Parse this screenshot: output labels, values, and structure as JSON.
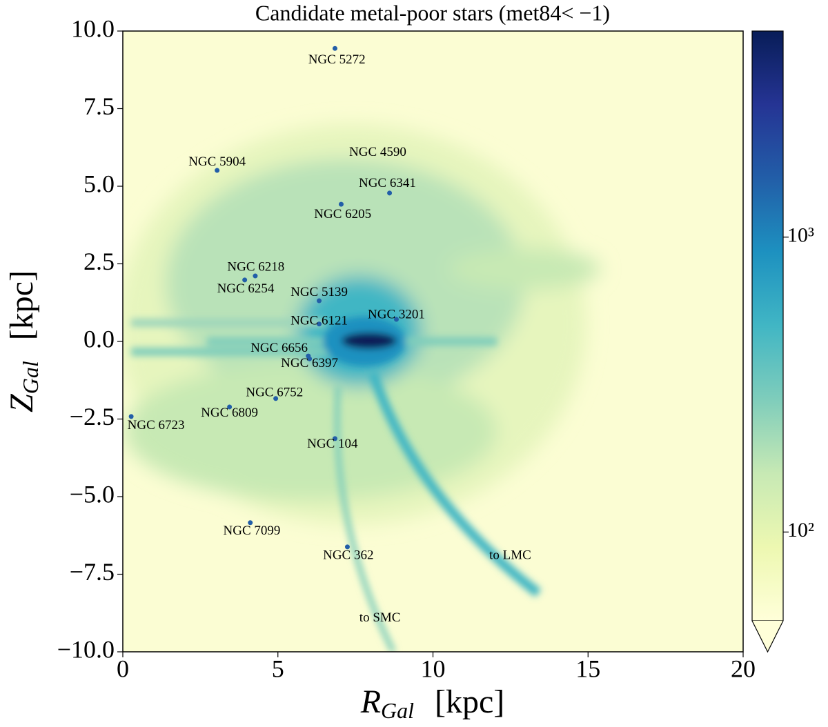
{
  "chart_data": {
    "type": "hexbin",
    "title": "Candidate metal-poor stars (met84< −1)",
    "xlabel": {
      "symbol": "R",
      "sub": "Gal",
      "unit": "[kpc]"
    },
    "ylabel": {
      "symbol": "Z",
      "sub": "Gal",
      "unit": "[kpc]"
    },
    "xlim": [
      0,
      20
    ],
    "ylim": [
      -10,
      10
    ],
    "xticks": [
      0,
      5,
      10,
      15,
      20
    ],
    "yticks": [
      {
        "value": -10,
        "label": "−10.0"
      },
      {
        "value": -7.5,
        "label": "−7.5"
      },
      {
        "value": -5,
        "label": "−5.0"
      },
      {
        "value": -2.5,
        "label": "−2.5"
      },
      {
        "value": 0,
        "label": "0.0"
      },
      {
        "value": 2.5,
        "label": "2.5"
      },
      {
        "value": 5,
        "label": "5.0"
      },
      {
        "value": 7.5,
        "label": "7.5"
      },
      {
        "value": 10,
        "label": "10.0"
      }
    ],
    "colorbar": {
      "scale": "log",
      "lim": [
        50,
        5000
      ],
      "ticks": [
        {
          "value": 100,
          "label": "10²"
        },
        {
          "value": 1000,
          "label": "10³"
        }
      ]
    },
    "annotations": [
      {
        "text": "NGC 5272",
        "x": 6.9,
        "y": 9.05
      },
      {
        "text": "NGC 5904",
        "x": 3.04,
        "y": 5.76
      },
      {
        "text": "NGC 4590",
        "x": 8.22,
        "y": 6.07
      },
      {
        "text": "NGC 6341",
        "x": 8.53,
        "y": 5.07
      },
      {
        "text": "NGC 6205",
        "x": 7.09,
        "y": 4.07
      },
      {
        "text": "NGC 6218",
        "x": 4.29,
        "y": 2.38
      },
      {
        "text": "NGC 6254",
        "x": 3.96,
        "y": 1.67
      },
      {
        "text": "NGC 5139",
        "x": 6.33,
        "y": 1.56
      },
      {
        "text": "NGC 6121",
        "x": 6.33,
        "y": 0.64
      },
      {
        "text": "NGC 3201",
        "x": 8.82,
        "y": 0.84
      },
      {
        "text": "NGC 6656",
        "x": 5.04,
        "y": -0.24
      },
      {
        "text": "NGC 6397",
        "x": 6.02,
        "y": -0.73
      },
      {
        "text": "NGC 6752",
        "x": 4.89,
        "y": -1.67
      },
      {
        "text": "NGC 6809",
        "x": 3.44,
        "y": -2.33
      },
      {
        "text": "NGC 6723",
        "x": 1.07,
        "y": -2.73
      },
      {
        "text": "NGC 104",
        "x": 6.76,
        "y": -3.33
      },
      {
        "text": "NGC 7099",
        "x": 4.16,
        "y": -6.13
      },
      {
        "text": "NGC 362",
        "x": 7.27,
        "y": -6.91
      },
      {
        "text": "to LMC",
        "x": 12.49,
        "y": -6.91
      },
      {
        "text": "to SMC",
        "x": 8.29,
        "y": -8.93
      }
    ],
    "points": {
      "color": "#225ea8",
      "x": [
        6.84,
        3.04,
        8.6,
        7.04,
        4.27,
        3.93,
        6.33,
        6.33,
        8.82,
        5.98,
        6.02,
        4.93,
        3.44,
        0.27,
        6.84,
        4.11,
        7.24
      ],
      "y": [
        9.44,
        5.51,
        4.78,
        4.42,
        2.11,
        1.98,
        1.31,
        0.56,
        0.71,
        -0.47,
        -0.56,
        -1.84,
        -2.11,
        -2.42,
        -3.13,
        -5.84,
        -6.62
      ]
    }
  }
}
